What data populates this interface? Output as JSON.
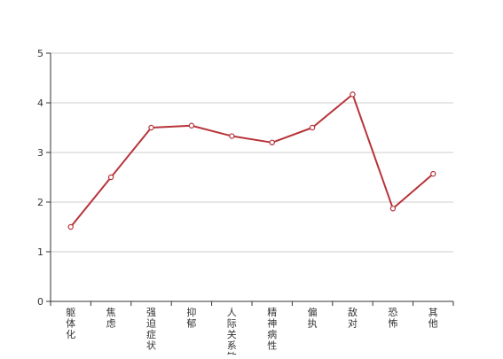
{
  "chart_data": {
    "type": "line",
    "title": "",
    "xlabel": "",
    "ylabel": "",
    "categories": [
      "躯体化",
      "焦虑",
      "强迫症状",
      "抑郁",
      "人际关系敏感",
      "精神病性",
      "偏执",
      "敌对",
      "恐怖",
      "其他"
    ],
    "series": [
      {
        "values": [
          1.5,
          2.5,
          3.5,
          3.54,
          3.33,
          3.2,
          3.5,
          4.17,
          1.87,
          2.57
        ]
      }
    ],
    "ylim": [
      0,
      5
    ],
    "yticks": [
      "0",
      "1",
      "2",
      "3",
      "4",
      "5"
    ],
    "grid": true,
    "colors": {
      "line": "#b8333a",
      "grid": "#cccccc",
      "axis": "#333333",
      "marker_fill": "#ffffff"
    }
  }
}
